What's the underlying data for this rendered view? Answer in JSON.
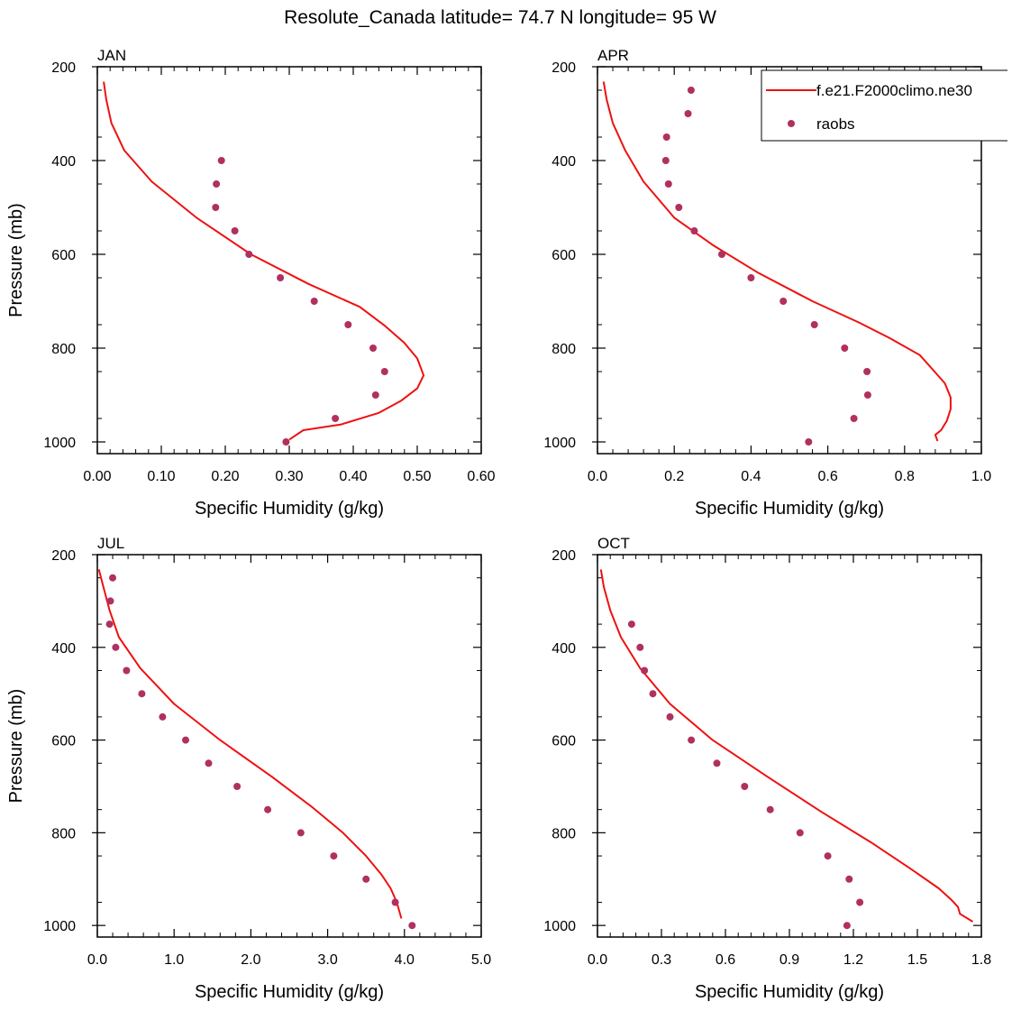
{
  "title": "Resolute_Canada  latitude= 74.7 N longitude= 95 W",
  "legend": {
    "placement": "top-right",
    "entries": [
      {
        "label": "f.e21.F2000climo.ne30",
        "style": "line",
        "color": "#ee1111"
      },
      {
        "label": "raobs",
        "style": "marker",
        "color": "#b03060"
      }
    ]
  },
  "colors": {
    "model": "#ee1111",
    "obs": "#b03060"
  },
  "chart_data": [
    {
      "type": "line",
      "panel_label": "JAN",
      "xlabel": "Specific Humidity (g/kg)",
      "ylabel": "Pressure (mb)",
      "xlim": [
        0,
        0.6
      ],
      "ylim": [
        200,
        1025
      ],
      "y_inverted": true,
      "xticks": [
        0,
        0.1,
        0.2,
        0.3,
        0.4,
        0.5,
        0.6
      ],
      "xtick_labels": [
        "0.00",
        "0.10",
        "0.20",
        "0.30",
        "0.40",
        "0.50",
        "0.60"
      ],
      "yticks": [
        200,
        400,
        600,
        800,
        1000
      ],
      "ytick_labels": [
        "200",
        "400",
        "600",
        "800",
        "1000"
      ],
      "series": [
        {
          "name": "f.e21.F2000climo.ne30",
          "style": "line",
          "x": [
            0.01,
            0.014,
            0.022,
            0.042,
            0.085,
            0.155,
            0.24,
            0.33,
            0.41,
            0.45,
            0.48,
            0.5,
            0.51,
            0.5,
            0.475,
            0.44,
            0.38,
            0.322,
            0.3
          ],
          "y": [
            232,
            270,
            320,
            378,
            445,
            522,
            600,
            663,
            712,
            753,
            789,
            822,
            858,
            886,
            912,
            938,
            963,
            975,
            995
          ]
        },
        {
          "name": "raobs",
          "style": "marker",
          "x": [
            0.194,
            0.186,
            0.185,
            0.215,
            0.237,
            0.286,
            0.339,
            0.392,
            0.431,
            0.449,
            0.435,
            0.372,
            0.295
          ],
          "y": [
            400,
            450,
            500,
            550,
            600,
            650,
            700,
            750,
            800,
            850,
            900,
            950,
            1000
          ]
        }
      ]
    },
    {
      "type": "line",
      "panel_label": "APR",
      "xlabel": "Specific Humidity (g/kg)",
      "ylabel": "",
      "xlim": [
        0,
        1.0
      ],
      "ylim": [
        200,
        1025
      ],
      "y_inverted": true,
      "xticks": [
        0,
        0.2,
        0.4,
        0.6,
        0.8,
        1.0
      ],
      "xtick_labels": [
        "0.0",
        "0.2",
        "0.4",
        "0.6",
        "0.8",
        "1.0"
      ],
      "yticks": [
        200,
        400,
        600,
        800,
        1000
      ],
      "ytick_labels": [
        "200",
        "400",
        "600",
        "800",
        "1000"
      ],
      "series": [
        {
          "name": "f.e21.F2000climo.ne30",
          "style": "line",
          "x": [
            0.016,
            0.024,
            0.04,
            0.072,
            0.12,
            0.2,
            0.3,
            0.42,
            0.56,
            0.68,
            0.76,
            0.84,
            0.88,
            0.905,
            0.92,
            0.92,
            0.91,
            0.895,
            0.88,
            0.886
          ],
          "y": [
            232,
            270,
            320,
            378,
            445,
            522,
            580,
            640,
            700,
            745,
            778,
            815,
            852,
            875,
            905,
            930,
            955,
            975,
            985,
            998
          ]
        },
        {
          "name": "raobs",
          "style": "marker",
          "x": [
            0.244,
            0.236,
            0.18,
            0.178,
            0.185,
            0.212,
            0.252,
            0.324,
            0.4,
            0.484,
            0.565,
            0.644,
            0.702,
            0.704,
            0.668,
            0.55
          ],
          "y": [
            250,
            300,
            350,
            400,
            450,
            500,
            550,
            600,
            650,
            700,
            750,
            800,
            850,
            900,
            950,
            1000
          ]
        }
      ]
    },
    {
      "type": "line",
      "panel_label": "JUL",
      "xlabel": "Specific Humidity (g/kg)",
      "ylabel": "Pressure (mb)",
      "xlim": [
        0,
        5.0
      ],
      "ylim": [
        200,
        1025
      ],
      "y_inverted": true,
      "xticks": [
        0,
        1,
        2,
        3,
        4,
        5
      ],
      "xtick_labels": [
        "0.0",
        "1.0",
        "2.0",
        "3.0",
        "4.0",
        "5.0"
      ],
      "yticks": [
        200,
        400,
        600,
        800,
        1000
      ],
      "ytick_labels": [
        "200",
        "400",
        "600",
        "800",
        "1000"
      ],
      "series": [
        {
          "name": "f.e21.F2000climo.ne30",
          "style": "line",
          "x": [
            0.02,
            0.08,
            0.16,
            0.28,
            0.56,
            1.0,
            1.6,
            2.28,
            2.8,
            3.2,
            3.5,
            3.7,
            3.82,
            3.9,
            3.96
          ],
          "y": [
            232,
            270,
            320,
            378,
            445,
            522,
            600,
            680,
            745,
            800,
            850,
            890,
            920,
            950,
            985
          ]
        },
        {
          "name": "raobs",
          "style": "marker",
          "x": [
            0.2,
            0.17,
            0.16,
            0.24,
            0.38,
            0.58,
            0.85,
            1.15,
            1.45,
            1.82,
            2.22,
            2.65,
            3.08,
            3.5,
            3.88,
            4.1
          ],
          "y": [
            250,
            300,
            350,
            400,
            450,
            500,
            550,
            600,
            650,
            700,
            750,
            800,
            850,
            900,
            950,
            1000
          ]
        }
      ]
    },
    {
      "type": "line",
      "panel_label": "OCT",
      "xlabel": "Specific Humidity (g/kg)",
      "ylabel": "",
      "xlim": [
        0,
        1.8
      ],
      "ylim": [
        200,
        1025
      ],
      "y_inverted": true,
      "xticks": [
        0,
        0.3,
        0.6,
        0.9,
        1.2,
        1.5,
        1.8
      ],
      "xtick_labels": [
        "0.0",
        "0.3",
        "0.6",
        "0.9",
        "1.2",
        "1.5",
        "1.8"
      ],
      "yticks": [
        200,
        400,
        600,
        800,
        1000
      ],
      "ytick_labels": [
        "200",
        "400",
        "600",
        "800",
        "1000"
      ],
      "series": [
        {
          "name": "f.e21.F2000climo.ne30",
          "style": "line",
          "x": [
            0.016,
            0.03,
            0.06,
            0.11,
            0.2,
            0.34,
            0.54,
            0.8,
            1.05,
            1.28,
            1.46,
            1.6,
            1.66,
            1.69,
            1.7,
            1.76
          ],
          "y": [
            232,
            270,
            320,
            378,
            445,
            522,
            600,
            680,
            755,
            820,
            875,
            920,
            945,
            960,
            975,
            992
          ]
        },
        {
          "name": "raobs",
          "style": "marker",
          "x": [
            0.16,
            0.2,
            0.22,
            0.26,
            0.34,
            0.44,
            0.56,
            0.69,
            0.81,
            0.95,
            1.08,
            1.18,
            1.23,
            1.17
          ],
          "y": [
            350,
            400,
            450,
            500,
            550,
            600,
            650,
            700,
            750,
            800,
            850,
            900,
            950,
            1000
          ]
        }
      ]
    }
  ]
}
